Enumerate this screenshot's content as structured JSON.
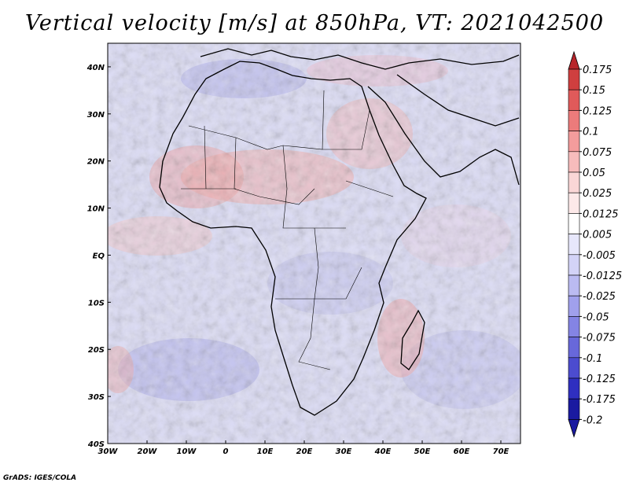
{
  "title": "Vertical velocity [m/s] at 850hPa, VT: 2021042500",
  "credit": "GrADS: IGES/COLA",
  "map": {
    "lon_range": [
      -30,
      75
    ],
    "lat_range": [
      -40,
      45
    ],
    "lon_ticks": [
      "30W",
      "20W",
      "10W",
      "0",
      "10E",
      "20E",
      "30E",
      "40E",
      "50E",
      "60E",
      "70E"
    ],
    "lat_ticks": [
      "40N",
      "30N",
      "20N",
      "10N",
      "EQ",
      "10S",
      "20S",
      "30S",
      "40S"
    ]
  },
  "colorbar": {
    "levels": [
      "0.175",
      "0.15",
      "0.125",
      "0.1",
      "0.075",
      "0.05",
      "0.025",
      "0.0125",
      "0.005",
      "-0.005",
      "-0.0125",
      "-0.025",
      "-0.05",
      "-0.075",
      "-0.1",
      "-0.125",
      "-0.175",
      "-0.2"
    ],
    "colors": [
      "#b8262b",
      "#cf3f3f",
      "#e05a5a",
      "#ec7b7b",
      "#f39c9c",
      "#f7bcbc",
      "#fad6d6",
      "#fde9e9",
      "#ffffff",
      "#e7e7fb",
      "#d3d3f7",
      "#bbbbf2",
      "#a0a0ec",
      "#8484e4",
      "#6868da",
      "#4c4ccf",
      "#2f2fc0",
      "#1a1aa0"
    ]
  },
  "chart_data": {
    "type": "heatmap",
    "title": "Vertical velocity [m/s] at 850hPa, VT: 2021042500",
    "variable": "Vertical velocity",
    "units": "m/s",
    "level": "850hPa",
    "valid_time": "2021042500",
    "x_range": [
      -30,
      75
    ],
    "y_range": [
      -40,
      45
    ],
    "color_levels": [
      0.175,
      0.15,
      0.125,
      0.1,
      0.075,
      0.05,
      0.025,
      0.0125,
      0.005,
      -0.005,
      -0.0125,
      -0.025,
      -0.05,
      -0.075,
      -0.1,
      -0.125,
      -0.175,
      -0.2
    ]
  }
}
